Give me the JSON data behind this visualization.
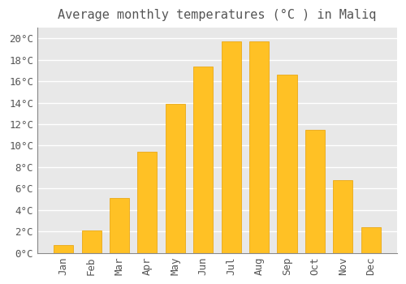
{
  "title": "Average monthly temperatures (°C ) in Maliq",
  "months": [
    "Jan",
    "Feb",
    "Mar",
    "Apr",
    "May",
    "Jun",
    "Jul",
    "Aug",
    "Sep",
    "Oct",
    "Nov",
    "Dec"
  ],
  "temperatures": [
    0.7,
    2.1,
    5.1,
    9.4,
    13.9,
    17.4,
    19.7,
    19.7,
    16.6,
    11.5,
    6.8,
    2.4
  ],
  "bar_color": "#FFC125",
  "bar_edge_color": "#E8A000",
  "background_color": "#FFFFFF",
  "plot_bg_color": "#E8E8E8",
  "grid_color": "#FFFFFF",
  "text_color": "#555555",
  "ylim": [
    0,
    21
  ],
  "yticks": [
    0,
    2,
    4,
    6,
    8,
    10,
    12,
    14,
    16,
    18,
    20
  ],
  "title_fontsize": 11,
  "tick_fontsize": 9,
  "font_family": "monospace"
}
